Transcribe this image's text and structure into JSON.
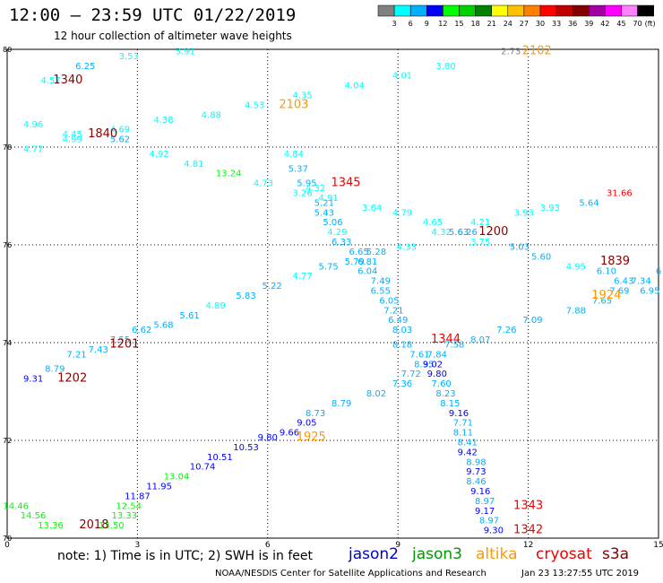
{
  "title": "12:00 – 23:59 UTC 01/22/2019",
  "subtitle": "12 hour collection of altimeter wave heights",
  "note": "note:  1) Time is in UTC;  2) SWH is in feet",
  "footer": "NOAA/NESDIS Center for Satellite Applications and Research",
  "timestamp": "Jan 23 13:27:55 UTC 2019",
  "satellites": [
    {
      "name": "jason2",
      "color": "#0000cc"
    },
    {
      "name": "jason3",
      "color": "#009900"
    },
    {
      "name": "altika",
      "color": "#ff9900"
    },
    {
      "name": "cryosat",
      "color": "#ee0000"
    },
    {
      "name": "s3a",
      "color": "#880000"
    }
  ],
  "colorbar": {
    "unit": "(ft)",
    "swatches": [
      "#808080",
      "#00ffff",
      "#00b0ff",
      "#0000ff",
      "#00ff00",
      "#00d000",
      "#008000",
      "#ffff00",
      "#ffc000",
      "#ff8000",
      "#ff0000",
      "#c00000",
      "#800000",
      "#a000a0",
      "#ff00ff",
      "#ff80ff",
      "#000000"
    ],
    "labels": [
      "3",
      "6",
      "9",
      "12",
      "15",
      "18",
      "21",
      "24",
      "27",
      "30",
      "33",
      "36",
      "39",
      "42",
      "45",
      "70"
    ]
  },
  "chart_data": {
    "type": "scatter",
    "title": "12:00 – 23:59 UTC 01/22/2019",
    "subtitle": "12 hour collection of altimeter wave heights",
    "x_ticks": [
      "0",
      "3",
      "6",
      "9",
      "12",
      "15"
    ],
    "y_ticks": [
      "70",
      "72",
      "74",
      "76",
      "78",
      "80"
    ],
    "xlim": [
      0,
      15
    ],
    "ylim": [
      70,
      80
    ],
    "grid": "dotted",
    "series": [
      {
        "name": "s3a",
        "color": "#880000",
        "labels": [
          "1340",
          "1840",
          "1200",
          "1839",
          "1201",
          "1202",
          "2018"
        ]
      },
      {
        "name": "altika",
        "color": "#ff9900",
        "labels": [
          "2102",
          "2103",
          "1924",
          "1925"
        ]
      },
      {
        "name": "cryosat",
        "color": "#ee0000",
        "labels": [
          "1345",
          "1344",
          "1343",
          "1342"
        ]
      }
    ],
    "points": [
      {
        "x": 1.0,
        "y": 79.3,
        "v": "4.57",
        "c": "#00ffff"
      },
      {
        "x": 1.8,
        "y": 79.6,
        "v": "6.25",
        "c": "#00b0ff"
      },
      {
        "x": 2.8,
        "y": 79.8,
        "v": "3.53",
        "c": "#00ffff"
      },
      {
        "x": 4.1,
        "y": 79.9,
        "v": "3.91",
        "c": "#00ffff"
      },
      {
        "x": 11.6,
        "y": 79.9,
        "v": "2.73",
        "c": "#808080"
      },
      {
        "x": 10.1,
        "y": 79.6,
        "v": "3.80",
        "c": "#00ffff"
      },
      {
        "x": 9.1,
        "y": 79.4,
        "v": "4.01",
        "c": "#00ffff"
      },
      {
        "x": 8.0,
        "y": 79.2,
        "v": "4.04",
        "c": "#00ffff"
      },
      {
        "x": 6.8,
        "y": 79.0,
        "v": "4.35",
        "c": "#00ffff"
      },
      {
        "x": 5.7,
        "y": 78.8,
        "v": "4.53",
        "c": "#00ffff"
      },
      {
        "x": 4.7,
        "y": 78.6,
        "v": "4.88",
        "c": "#00ffff"
      },
      {
        "x": 3.6,
        "y": 78.5,
        "v": "4.38",
        "c": "#00ffff"
      },
      {
        "x": 0.6,
        "y": 78.4,
        "v": "4.96",
        "c": "#00ffff"
      },
      {
        "x": 1.5,
        "y": 78.2,
        "v": "4.45",
        "c": "#00ffff"
      },
      {
        "x": 1.5,
        "y": 78.1,
        "v": "4.99",
        "c": "#00ffff"
      },
      {
        "x": 2.6,
        "y": 78.3,
        "v": "4.69",
        "c": "#00ffff"
      },
      {
        "x": 2.6,
        "y": 78.1,
        "v": "5.62",
        "c": "#00b0ff"
      },
      {
        "x": 0.6,
        "y": 77.9,
        "v": "4.77",
        "c": "#00ffff"
      },
      {
        "x": 3.5,
        "y": 77.8,
        "v": "4.92",
        "c": "#00ffff"
      },
      {
        "x": 4.3,
        "y": 77.6,
        "v": "4.81",
        "c": "#00ffff"
      },
      {
        "x": 5.1,
        "y": 77.4,
        "v": "13.24",
        "c": "#00ff00"
      },
      {
        "x": 5.9,
        "y": 77.2,
        "v": "4.73",
        "c": "#00ffff"
      },
      {
        "x": 6.6,
        "y": 77.8,
        "v": "4.84",
        "c": "#00ffff"
      },
      {
        "x": 6.7,
        "y": 77.5,
        "v": "5.37",
        "c": "#00b0ff"
      },
      {
        "x": 6.9,
        "y": 77.2,
        "v": "5.95",
        "c": "#00b0ff"
      },
      {
        "x": 7.1,
        "y": 77.1,
        "v": "4.32",
        "c": "#00ffff"
      },
      {
        "x": 6.8,
        "y": 77.0,
        "v": "3.26",
        "c": "#00ffff"
      },
      {
        "x": 7.4,
        "y": 76.9,
        "v": "4.91",
        "c": "#00ffff"
      },
      {
        "x": 7.3,
        "y": 76.8,
        "v": "5.21",
        "c": "#00b0ff"
      },
      {
        "x": 8.4,
        "y": 76.7,
        "v": "3.64",
        "c": "#00ffff"
      },
      {
        "x": 7.3,
        "y": 76.6,
        "v": "5.43",
        "c": "#00b0ff"
      },
      {
        "x": 9.1,
        "y": 76.6,
        "v": "4.79",
        "c": "#00ffff"
      },
      {
        "x": 7.5,
        "y": 76.4,
        "v": "5.06",
        "c": "#00b0ff"
      },
      {
        "x": 9.8,
        "y": 76.4,
        "v": "4.65",
        "c": "#00ffff"
      },
      {
        "x": 10.9,
        "y": 76.4,
        "v": "4.21",
        "c": "#00ffff"
      },
      {
        "x": 11.9,
        "y": 76.6,
        "v": "3.93",
        "c": "#00ffff"
      },
      {
        "x": 12.5,
        "y": 76.7,
        "v": "3.93",
        "c": "#00ffff"
      },
      {
        "x": 13.4,
        "y": 76.8,
        "v": "5.64",
        "c": "#00b0ff"
      },
      {
        "x": 14.1,
        "y": 77.0,
        "v": "31.66",
        "c": "#ff0000"
      },
      {
        "x": 7.6,
        "y": 76.2,
        "v": "4.29",
        "c": "#00ffff"
      },
      {
        "x": 10.0,
        "y": 76.2,
        "v": "4.32",
        "c": "#00ffff"
      },
      {
        "x": 10.4,
        "y": 76.2,
        "v": "5.63",
        "c": "#00b0ff"
      },
      {
        "x": 10.6,
        "y": 76.2,
        "v": "6.26",
        "c": "#00b0ff"
      },
      {
        "x": 7.7,
        "y": 76.0,
        "v": "6.33",
        "c": "#00b0ff"
      },
      {
        "x": 10.9,
        "y": 76.0,
        "v": "3.75",
        "c": "#00ffff"
      },
      {
        "x": 9.2,
        "y": 75.9,
        "v": "4.33",
        "c": "#00ffff"
      },
      {
        "x": 11.8,
        "y": 75.9,
        "v": "5.03",
        "c": "#00b0ff"
      },
      {
        "x": 8.1,
        "y": 75.8,
        "v": "6.65",
        "c": "#00b0ff"
      },
      {
        "x": 8.5,
        "y": 75.8,
        "v": "5.28",
        "c": "#00b0ff"
      },
      {
        "x": 12.3,
        "y": 75.7,
        "v": "5.60",
        "c": "#00b0ff"
      },
      {
        "x": 8.0,
        "y": 75.6,
        "v": "5.79",
        "c": "#00b0ff"
      },
      {
        "x": 8.3,
        "y": 75.6,
        "v": "6.81",
        "c": "#00b0ff"
      },
      {
        "x": 7.4,
        "y": 75.5,
        "v": "5.75",
        "c": "#00b0ff"
      },
      {
        "x": 8.3,
        "y": 75.4,
        "v": "6.04",
        "c": "#00b0ff"
      },
      {
        "x": 13.1,
        "y": 75.5,
        "v": "4.95",
        "c": "#00ffff"
      },
      {
        "x": 13.8,
        "y": 75.4,
        "v": "6.10",
        "c": "#00b0ff"
      },
      {
        "x": 6.8,
        "y": 75.3,
        "v": "4.77",
        "c": "#00ffff"
      },
      {
        "x": 8.6,
        "y": 75.2,
        "v": "7.49",
        "c": "#00b0ff"
      },
      {
        "x": 14.2,
        "y": 75.2,
        "v": "6.43",
        "c": "#00b0ff"
      },
      {
        "x": 14.6,
        "y": 75.2,
        "v": "7.34",
        "c": "#00b0ff"
      },
      {
        "x": 15.0,
        "y": 75.4,
        "v": "6",
        "c": "#00b0ff"
      },
      {
        "x": 6.1,
        "y": 75.1,
        "v": "5.22",
        "c": "#00b0ff"
      },
      {
        "x": 8.6,
        "y": 75.0,
        "v": "6.55",
        "c": "#00b0ff"
      },
      {
        "x": 14.1,
        "y": 75.0,
        "v": "7.69",
        "c": "#00b0ff"
      },
      {
        "x": 14.8,
        "y": 75.0,
        "v": "6.95",
        "c": "#00b0ff"
      },
      {
        "x": 5.5,
        "y": 74.9,
        "v": "5.83",
        "c": "#00b0ff"
      },
      {
        "x": 8.8,
        "y": 74.8,
        "v": "6.05",
        "c": "#00b0ff"
      },
      {
        "x": 13.7,
        "y": 74.8,
        "v": "7.65",
        "c": "#00b0ff"
      },
      {
        "x": 4.8,
        "y": 74.7,
        "v": "4.89",
        "c": "#00ffff"
      },
      {
        "x": 8.9,
        "y": 74.6,
        "v": "7.21",
        "c": "#00b0ff"
      },
      {
        "x": 13.1,
        "y": 74.6,
        "v": "7.88",
        "c": "#00b0ff"
      },
      {
        "x": 4.2,
        "y": 74.5,
        "v": "5.61",
        "c": "#00b0ff"
      },
      {
        "x": 9.0,
        "y": 74.4,
        "v": "6.49",
        "c": "#00b0ff"
      },
      {
        "x": 12.1,
        "y": 74.4,
        "v": "7.09",
        "c": "#00b0ff"
      },
      {
        "x": 3.6,
        "y": 74.3,
        "v": "5.68",
        "c": "#00b0ff"
      },
      {
        "x": 11.5,
        "y": 74.2,
        "v": "7.26",
        "c": "#00b0ff"
      },
      {
        "x": 3.1,
        "y": 74.2,
        "v": "6.62",
        "c": "#00b0ff"
      },
      {
        "x": 9.1,
        "y": 74.2,
        "v": "8.03",
        "c": "#00b0ff"
      },
      {
        "x": 10.9,
        "y": 74.0,
        "v": "8.07",
        "c": "#00b0ff"
      },
      {
        "x": 2.6,
        "y": 74.0,
        "v": "7.55",
        "c": "#00b0ff"
      },
      {
        "x": 9.1,
        "y": 73.9,
        "v": "8.18",
        "c": "#00b0ff"
      },
      {
        "x": 10.3,
        "y": 73.9,
        "v": "7.58",
        "c": "#00b0ff"
      },
      {
        "x": 2.1,
        "y": 73.8,
        "v": "7.43",
        "c": "#00b0ff"
      },
      {
        "x": 1.6,
        "y": 73.7,
        "v": "7.21",
        "c": "#00b0ff"
      },
      {
        "x": 9.5,
        "y": 73.7,
        "v": "7.61",
        "c": "#00b0ff"
      },
      {
        "x": 9.9,
        "y": 73.7,
        "v": "7.84",
        "c": "#00b0ff"
      },
      {
        "x": 9.6,
        "y": 73.5,
        "v": "8.35",
        "c": "#00b0ff"
      },
      {
        "x": 9.8,
        "y": 73.5,
        "v": "9.02",
        "c": "#0000ff"
      },
      {
        "x": 1.1,
        "y": 73.4,
        "v": "8.79",
        "c": "#00b0ff"
      },
      {
        "x": 9.3,
        "y": 73.3,
        "v": "7.72",
        "c": "#00b0ff"
      },
      {
        "x": 9.9,
        "y": 73.3,
        "v": "9.80",
        "c": "#0000ff"
      },
      {
        "x": 0.6,
        "y": 73.2,
        "v": "9.31",
        "c": "#0000ff"
      },
      {
        "x": 9.1,
        "y": 73.1,
        "v": "7.36",
        "c": "#00b0ff"
      },
      {
        "x": 10.0,
        "y": 73.1,
        "v": "7.60",
        "c": "#00b0ff"
      },
      {
        "x": 8.5,
        "y": 72.9,
        "v": "8.02",
        "c": "#00b0ff"
      },
      {
        "x": 10.1,
        "y": 72.9,
        "v": "8.23",
        "c": "#00b0ff"
      },
      {
        "x": 7.7,
        "y": 72.7,
        "v": "8.79",
        "c": "#00b0ff"
      },
      {
        "x": 10.2,
        "y": 72.7,
        "v": "8.15",
        "c": "#00b0ff"
      },
      {
        "x": 7.1,
        "y": 72.5,
        "v": "8.73",
        "c": "#00b0ff"
      },
      {
        "x": 10.4,
        "y": 72.5,
        "v": "9.16",
        "c": "#0000ff"
      },
      {
        "x": 6.9,
        "y": 72.3,
        "v": "9.05",
        "c": "#0000ff"
      },
      {
        "x": 10.5,
        "y": 72.3,
        "v": "7.71",
        "c": "#00b0ff"
      },
      {
        "x": 6.5,
        "y": 72.1,
        "v": "9.66",
        "c": "#0000ff"
      },
      {
        "x": 10.5,
        "y": 72.1,
        "v": "8.11",
        "c": "#00b0ff"
      },
      {
        "x": 6.0,
        "y": 72.0,
        "v": "9.80",
        "c": "#0000ff"
      },
      {
        "x": 10.6,
        "y": 71.9,
        "v": "8.41",
        "c": "#00b0ff"
      },
      {
        "x": 5.5,
        "y": 71.8,
        "v": "10.53",
        "c": "#0000ff"
      },
      {
        "x": 10.6,
        "y": 71.7,
        "v": "9.42",
        "c": "#0000ff"
      },
      {
        "x": 4.9,
        "y": 71.6,
        "v": "10.51",
        "c": "#0000ff"
      },
      {
        "x": 10.8,
        "y": 71.5,
        "v": "8.98",
        "c": "#00b0ff"
      },
      {
        "x": 4.5,
        "y": 71.4,
        "v": "10.74",
        "c": "#0000ff"
      },
      {
        "x": 10.8,
        "y": 71.3,
        "v": "9.73",
        "c": "#0000ff"
      },
      {
        "x": 3.9,
        "y": 71.2,
        "v": "13.04",
        "c": "#00ff00"
      },
      {
        "x": 10.8,
        "y": 71.1,
        "v": "8.46",
        "c": "#00b0ff"
      },
      {
        "x": 3.5,
        "y": 71.0,
        "v": "11.95",
        "c": "#0000ff"
      },
      {
        "x": 10.9,
        "y": 70.9,
        "v": "9.16",
        "c": "#0000ff"
      },
      {
        "x": 3.0,
        "y": 70.8,
        "v": "11.87",
        "c": "#0000ff"
      },
      {
        "x": 11.0,
        "y": 70.7,
        "v": "8.97",
        "c": "#00b0ff"
      },
      {
        "x": 2.8,
        "y": 70.6,
        "v": "12.54",
        "c": "#00ff00"
      },
      {
        "x": 11.0,
        "y": 70.5,
        "v": "9.17",
        "c": "#0000ff"
      },
      {
        "x": 0.2,
        "y": 70.6,
        "v": "14.46",
        "c": "#00ff00"
      },
      {
        "x": 2.7,
        "y": 70.4,
        "v": "13.33",
        "c": "#00ff00"
      },
      {
        "x": 0.6,
        "y": 70.4,
        "v": "14.56",
        "c": "#00ff00"
      },
      {
        "x": 11.1,
        "y": 70.3,
        "v": "8.97",
        "c": "#00b0ff"
      },
      {
        "x": 2.4,
        "y": 70.2,
        "v": "13.50",
        "c": "#00ff00"
      },
      {
        "x": 1.0,
        "y": 70.2,
        "v": "13.36",
        "c": "#00ff00"
      },
      {
        "x": 11.2,
        "y": 70.1,
        "v": "9.30",
        "c": "#0000ff"
      }
    ],
    "pass_labels": [
      {
        "x": 1.4,
        "y": 79.3,
        "t": "1340",
        "c": "#880000"
      },
      {
        "x": 2.2,
        "y": 78.2,
        "t": "1840",
        "c": "#880000"
      },
      {
        "x": 12.2,
        "y": 79.9,
        "t": "2102",
        "c": "#ff9900"
      },
      {
        "x": 6.6,
        "y": 78.8,
        "t": "2103",
        "c": "#ff9900"
      },
      {
        "x": 7.8,
        "y": 77.2,
        "t": "1345",
        "c": "#ee0000"
      },
      {
        "x": 11.2,
        "y": 76.2,
        "t": "1200",
        "c": "#880000"
      },
      {
        "x": 14.0,
        "y": 75.6,
        "t": "1839",
        "c": "#880000"
      },
      {
        "x": 13.8,
        "y": 74.9,
        "t": "1924",
        "c": "#ff9900"
      },
      {
        "x": 10.1,
        "y": 74.0,
        "t": "1344",
        "c": "#ee0000"
      },
      {
        "x": 2.7,
        "y": 73.9,
        "t": "1201",
        "c": "#880000"
      },
      {
        "x": 1.5,
        "y": 73.2,
        "t": "1202",
        "c": "#880000"
      },
      {
        "x": 7.0,
        "y": 72.0,
        "t": "1925",
        "c": "#ff9900"
      },
      {
        "x": 12.0,
        "y": 70.6,
        "t": "1343",
        "c": "#ee0000"
      },
      {
        "x": 12.0,
        "y": 70.1,
        "t": "1342",
        "c": "#ee0000"
      },
      {
        "x": 2.0,
        "y": 70.2,
        "t": "2018",
        "c": "#880000"
      }
    ]
  }
}
